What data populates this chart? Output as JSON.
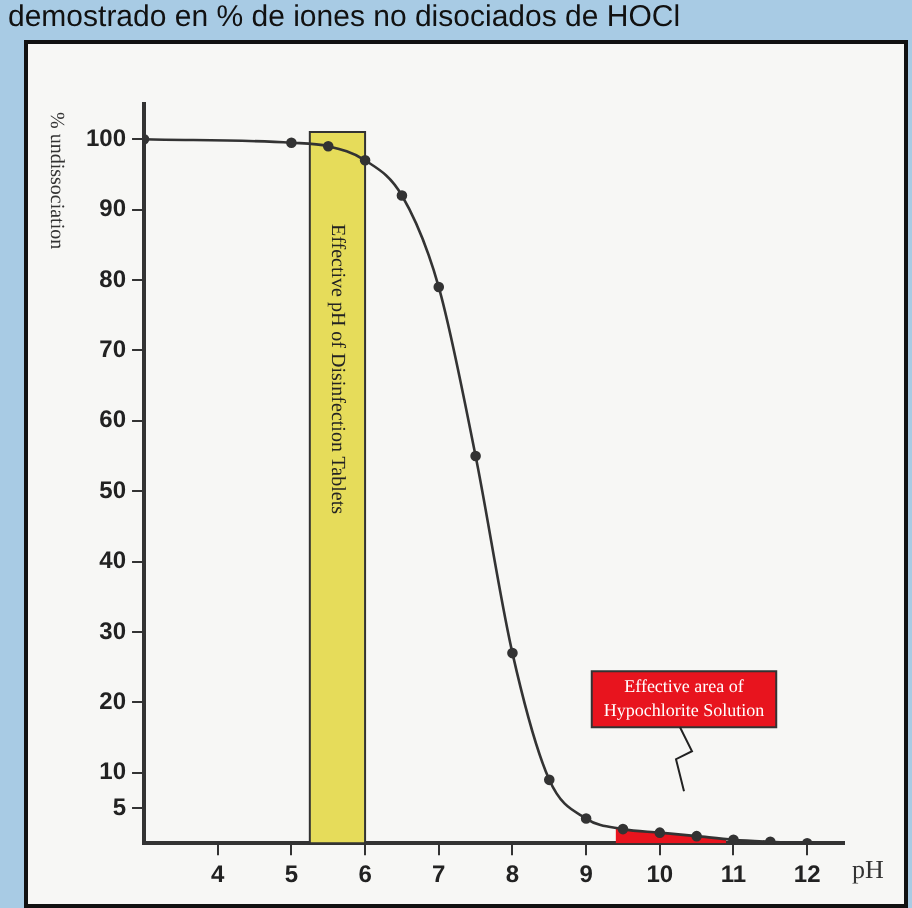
{
  "chart_data": {
    "type": "line",
    "title": "demostrado en % de iones no disociados de HOCl",
    "xlabel": "pH",
    "ylabel": "% undissociation",
    "x": [
      3,
      5,
      5.5,
      6,
      6.5,
      7,
      7.5,
      8,
      8.5,
      9,
      9.5,
      10,
      10.5,
      11,
      11.5,
      12
    ],
    "series": [
      {
        "color": "#333333",
        "values": [
          100,
          99.5,
          99,
          97,
          92,
          79,
          55,
          27,
          9,
          3.5,
          2,
          1.5,
          1,
          0.5,
          0.2,
          0
        ]
      },
      {
        "type": "area",
        "marker": "none",
        "color": "#e8141e",
        "x": [
          9.4,
          9.5,
          10,
          10.5,
          10.9
        ],
        "values": [
          2.1,
          2,
          1.5,
          1,
          0.6
        ]
      }
    ],
    "xlim": [
      3,
      12.5
    ],
    "xticks": [
      4,
      5,
      6,
      7,
      8,
      9,
      10,
      11,
      12
    ],
    "ylim": [
      0,
      105
    ],
    "yticks": [
      5,
      10,
      20,
      30,
      40,
      50,
      60,
      70,
      80,
      90,
      100
    ],
    "bands": [
      {
        "axis": "x",
        "from": 5.25,
        "to": 6,
        "label": "Effective pH of Disinfection Tablets",
        "color": "#e6dc5a"
      }
    ],
    "annotations": [
      "Effective area of Hypochlorite Solution"
    ],
    "grid": false,
    "legend": false,
    "marker": "circle",
    "line_style": "solid"
  }
}
